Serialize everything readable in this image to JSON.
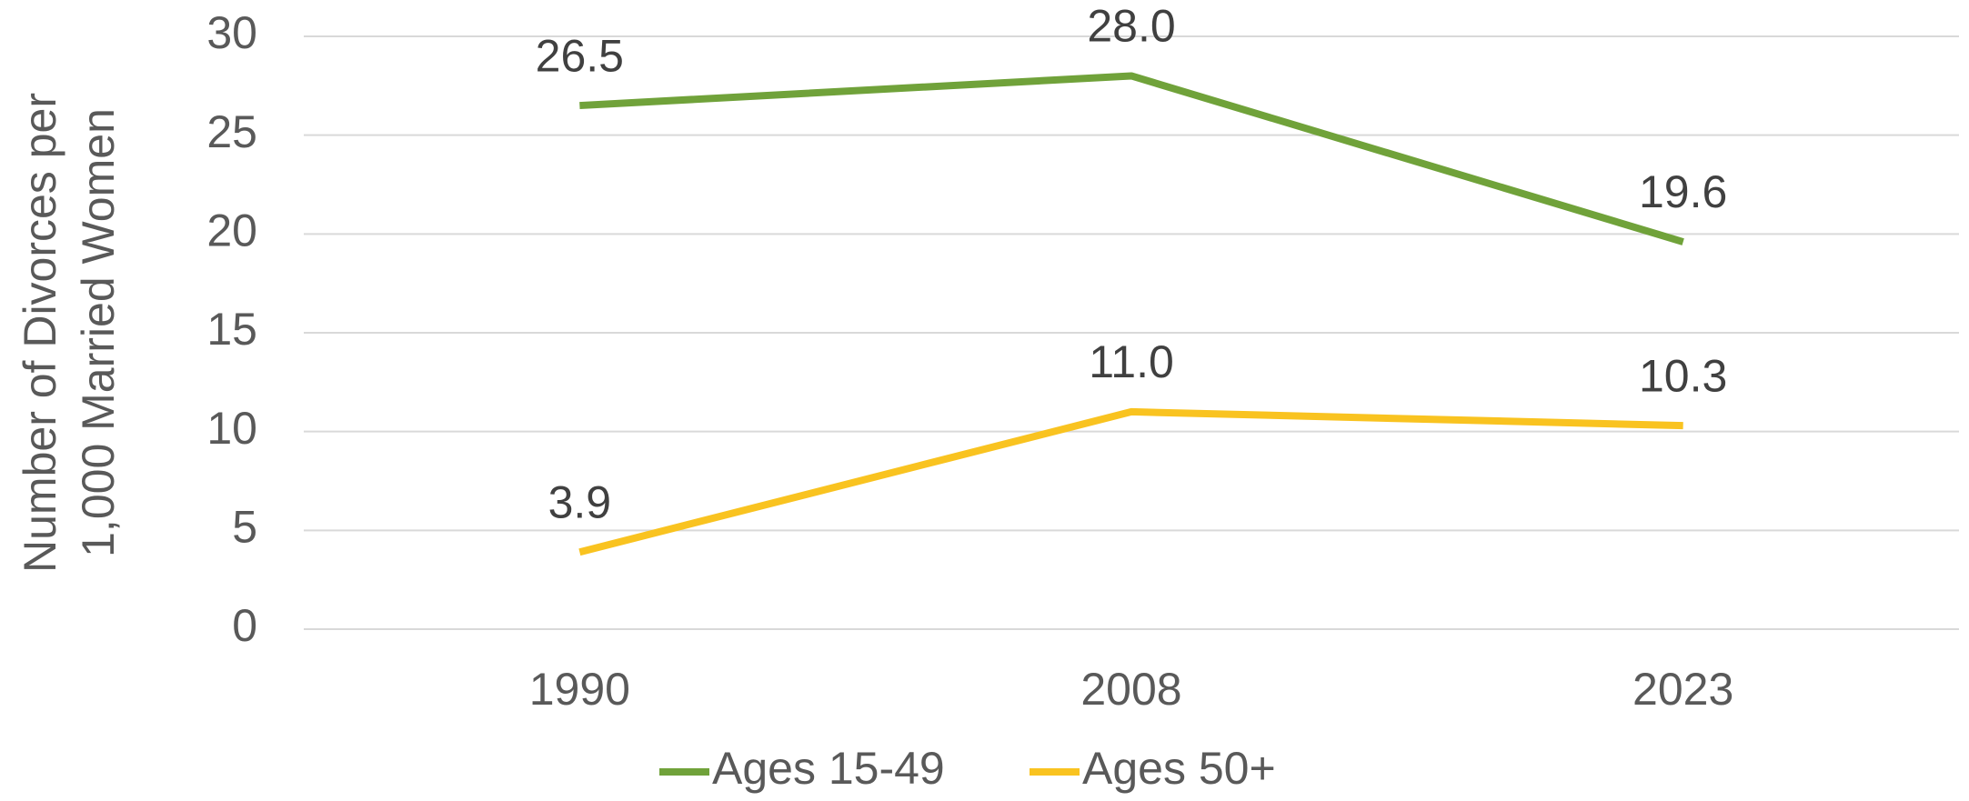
{
  "chart_data": {
    "type": "line",
    "y_label": [
      "Number of Divorces per",
      "1,000 Married Women"
    ],
    "categories": [
      "1990",
      "2008",
      "2023"
    ],
    "series": [
      {
        "name": "Ages 15-49",
        "color": "#70a23a",
        "values": [
          26.5,
          28,
          19.6
        ],
        "value_labels": [
          "26.5",
          "28.0",
          "19.6"
        ]
      },
      {
        "name": "Ages 50+",
        "color": "#f9c320",
        "values": [
          3.9,
          11,
          10.3
        ],
        "value_labels": [
          "3.9",
          "11.0",
          "10.3"
        ]
      }
    ],
    "ylim": [
      0,
      30
    ],
    "yticks": [
      0,
      5,
      10,
      15,
      20,
      25,
      30
    ],
    "grid": true,
    "legend": "bottom"
  }
}
